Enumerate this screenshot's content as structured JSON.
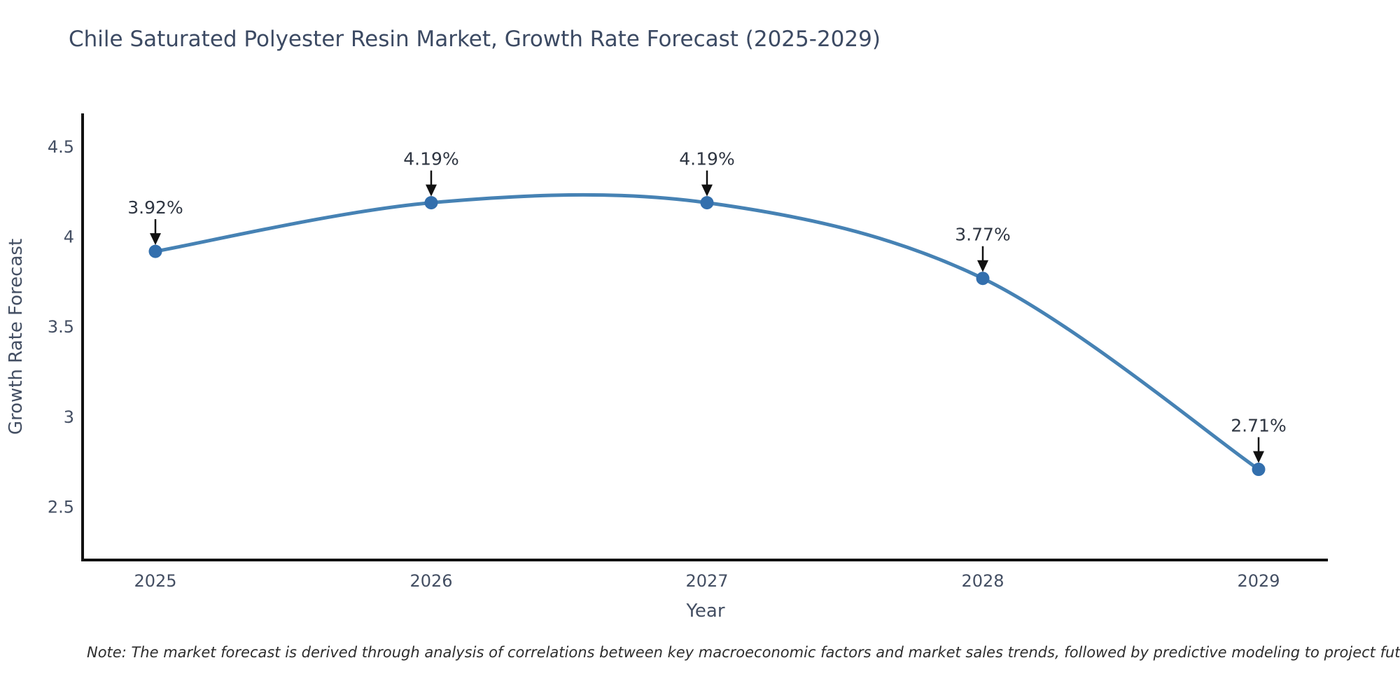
{
  "page": {
    "background": "#ffffff"
  },
  "chart_data": {
    "type": "line",
    "title": "Chile Saturated Polyester Resin Market, Growth Rate Forecast (2025-2029)",
    "xlabel": "Year",
    "ylabel": "Growth Rate Forecast",
    "x": [
      2025,
      2026,
      2027,
      2028,
      2029
    ],
    "series": [
      {
        "name": "Growth Rate Forecast",
        "values": [
          3.92,
          4.19,
          4.19,
          3.77,
          2.71
        ]
      }
    ],
    "point_labels": [
      "3.92%",
      "4.19%",
      "4.19%",
      "3.77%",
      "2.71%"
    ],
    "x_ticks": [
      "2025",
      "2026",
      "2027",
      "2028",
      "2029"
    ],
    "y_ticks": [
      "4.5",
      "4",
      "3.5",
      "3",
      "2.5"
    ],
    "y_tick_values": [
      4.5,
      4.0,
      3.5,
      3.0,
      2.5
    ],
    "ylim": [
      2.22,
      4.67
    ],
    "xlim": [
      2024.74,
      2029.25
    ],
    "grid": false,
    "legend": false,
    "line_color": "#4682b4",
    "marker_color": "#336fad",
    "spine_color": "#111111",
    "annotation_color": "#2f3642",
    "annotation_arrow_color": "#111111",
    "tick_color": "#444f63",
    "note": "Note: The market forecast is derived through analysis of correlations between key macroeconomic factors and market sales trends, followed by predictive modeling to project future sales."
  }
}
